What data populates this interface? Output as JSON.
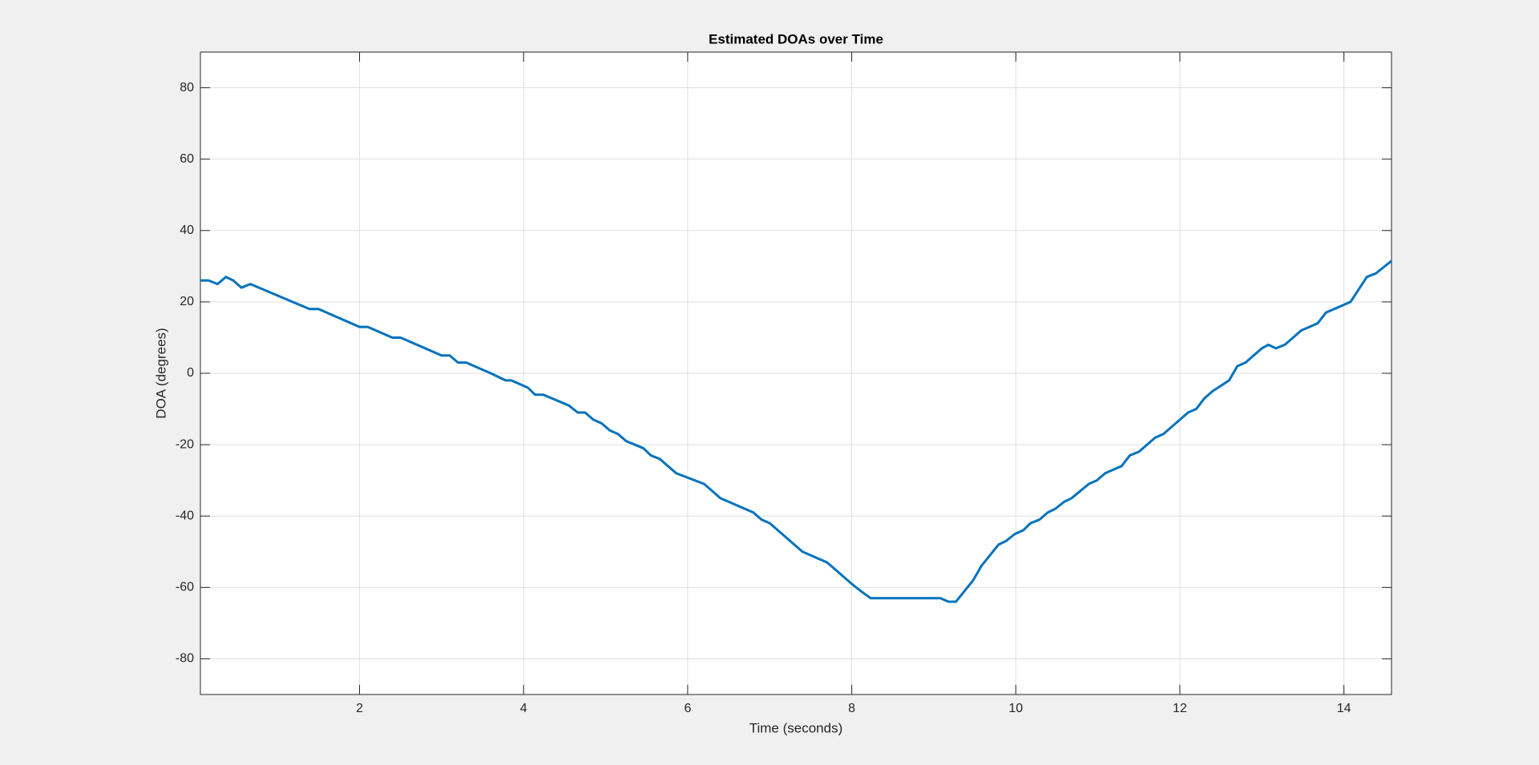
{
  "chart_data": {
    "type": "line",
    "title": "Estimated DOAs over Time",
    "xlabel": "Time (seconds)",
    "ylabel": "DOA (degrees)",
    "xlim": [
      0.06,
      14.58
    ],
    "ylim": [
      -90,
      90
    ],
    "xticks": [
      2,
      4,
      6,
      8,
      10,
      12,
      14
    ],
    "yticks": [
      -80,
      -60,
      -40,
      -20,
      0,
      20,
      40,
      60,
      80
    ],
    "grid": true,
    "x": [
      0.06,
      0.16,
      0.27,
      0.37,
      0.46,
      0.56,
      0.67,
      1.39,
      1.5,
      2.0,
      2.1,
      2.4,
      2.5,
      3.0,
      3.1,
      3.2,
      3.3,
      3.6,
      3.78,
      3.85,
      4.05,
      4.14,
      4.24,
      4.55,
      4.66,
      4.75,
      4.85,
      4.95,
      5.05,
      5.15,
      5.25,
      5.46,
      5.55,
      5.66,
      5.86,
      6.2,
      6.3,
      6.4,
      6.5,
      6.8,
      6.9,
      7.0,
      7.4,
      7.7,
      8.0,
      8.11,
      8.23,
      9.08,
      9.18,
      9.27,
      9.48,
      9.58,
      9.79,
      9.88,
      9.99,
      10.09,
      10.18,
      10.29,
      10.39,
      10.48,
      10.59,
      10.68,
      10.89,
      10.99,
      11.09,
      11.29,
      11.39,
      11.5,
      11.7,
      11.8,
      12.1,
      12.2,
      12.3,
      12.4,
      12.6,
      12.7,
      12.8,
      13.0,
      13.08,
      13.17,
      13.28,
      13.48,
      13.68,
      13.78,
      13.98,
      14.08,
      14.28,
      14.39,
      14.58
    ],
    "series": [
      {
        "name": "DOA",
        "color": "#0072bd",
        "values": [
          26,
          26,
          25,
          27,
          26,
          24,
          25,
          18,
          18,
          13,
          13,
          10,
          10,
          5,
          5,
          3,
          3,
          0,
          -2,
          -2,
          -4,
          -6,
          -6,
          -9,
          -11,
          -11,
          -13,
          -14,
          -16,
          -17,
          -19,
          -21,
          -23,
          -24,
          -28,
          -31,
          -33,
          -35,
          -36,
          -39,
          -41,
          -42,
          -50,
          -53,
          -59,
          -61,
          -63,
          -63,
          -64,
          -64,
          -58,
          -54,
          -48,
          -47,
          -45,
          -44,
          -42,
          -41,
          -39,
          -38,
          -36,
          -35,
          -31,
          -30,
          -28,
          -26,
          -23,
          -22,
          -18,
          -17,
          -11,
          -10,
          -7,
          -5,
          -2,
          2,
          3,
          7,
          8,
          7,
          8,
          12,
          14,
          17,
          19,
          20,
          27,
          28,
          31.5
        ]
      }
    ]
  }
}
